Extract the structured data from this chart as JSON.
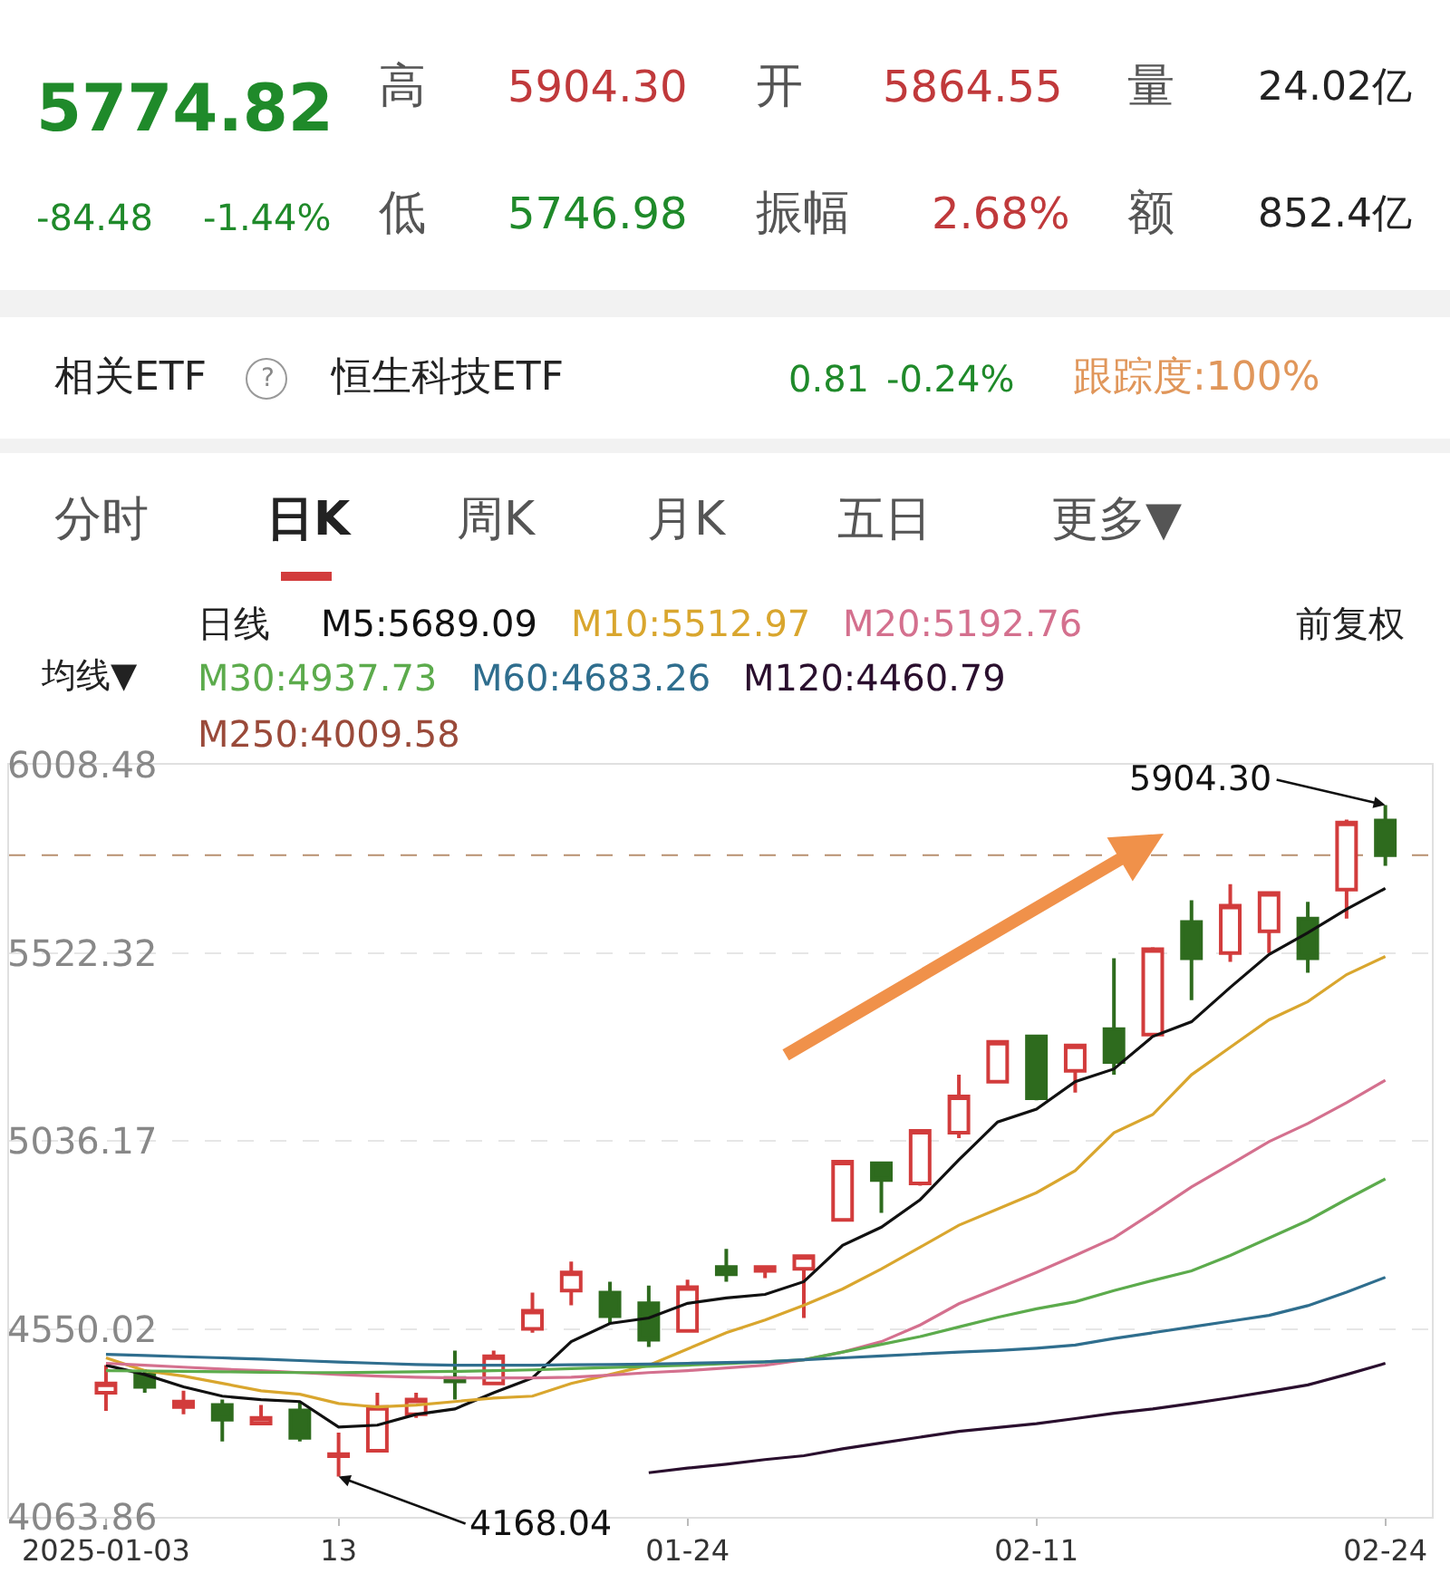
{
  "chart_data": {
    "type": "candlestick",
    "categories": [
      "2025-01-03",
      null,
      null,
      null,
      null,
      null,
      "13",
      null,
      null,
      null,
      null,
      null,
      null,
      null,
      null,
      "01-24",
      null,
      null,
      null,
      null,
      null,
      null,
      null,
      null,
      "02-11",
      null,
      null,
      null,
      null,
      null,
      null,
      null,
      null,
      "02-24"
    ],
    "ohlc": [
      [
        4385,
        4456,
        4338,
        4409
      ],
      [
        4432,
        4446,
        4385,
        4400
      ],
      [
        4348,
        4390,
        4329,
        4362
      ],
      [
        4353,
        4367,
        4259,
        4315
      ],
      [
        4305,
        4353,
        4301,
        4320
      ],
      [
        4339,
        4362,
        4259,
        4268
      ],
      [
        4221,
        4282,
        4168.04,
        4226
      ],
      [
        4235,
        4385,
        4230,
        4348
      ],
      [
        4329,
        4385,
        4320,
        4367
      ],
      [
        4423,
        4494,
        4367,
        4414
      ],
      [
        4409,
        4494,
        4409,
        4479
      ],
      [
        4550,
        4644,
        4540,
        4597
      ],
      [
        4649,
        4724,
        4611,
        4696
      ],
      [
        4644,
        4672,
        4564,
        4583
      ],
      [
        4616,
        4662,
        4503,
        4522
      ],
      [
        4545,
        4677,
        4540,
        4658
      ],
      [
        4710,
        4757,
        4672,
        4691
      ],
      [
        4700,
        4712,
        4681,
        4710
      ],
      [
        4705,
        4740,
        4578,
        4738
      ],
      [
        4832,
        4985,
        4828,
        4982
      ],
      [
        4978,
        4980,
        4850,
        4935
      ],
      [
        4926,
        5066,
        4920,
        5062
      ],
      [
        5057,
        5207,
        5043,
        5151
      ],
      [
        5189,
        5296,
        5185,
        5292
      ],
      [
        5306,
        5310,
        5141,
        5146
      ],
      [
        5217,
        5285,
        5161,
        5283
      ],
      [
        5325,
        5508,
        5207,
        5240
      ],
      [
        5311,
        5537,
        5306,
        5532
      ],
      [
        5602,
        5658,
        5400,
        5508
      ],
      [
        5522,
        5700,
        5499,
        5644
      ],
      [
        5578,
        5680,
        5522,
        5677
      ],
      [
        5611,
        5654,
        5471,
        5508
      ],
      [
        5686,
        5867,
        5611,
        5859.3
      ],
      [
        5864.55,
        5904.3,
        5746.98,
        5774.82
      ]
    ],
    "series": [
      {
        "name": "M5:5689.09",
        "type": "line",
        "color": "#111111",
        "values": [
          4456,
          4432,
          4400,
          4376,
          4367,
          4362,
          4296,
          4301,
          4329,
          4343,
          4385,
          4423,
          4517,
          4564,
          4578,
          4616,
          4630,
          4639,
          4672,
          4766,
          4813,
          4884,
          4987,
          5085,
          5118,
          5189,
          5222,
          5306,
          5344,
          5433,
          5518,
          5574,
          5635,
          5689.09
        ]
      },
      {
        "name": "M10:5512.97",
        "type": "line",
        "color": "#d9a62e",
        "values": [
          4475,
          4442,
          4428,
          4409,
          4390,
          4381,
          4357,
          4348,
          4353,
          4362,
          4371,
          4376,
          4409,
          4432,
          4456,
          4498,
          4540,
          4573,
          4611,
          4653,
          4705,
          4761,
          4818,
          4860,
          4902,
          4959,
          5057,
          5104,
          5207,
          5278,
          5349,
          5396,
          5466,
          5512.97
        ]
      },
      {
        "name": "M20:5192.76",
        "type": "line",
        "color": "#d4708e",
        "values": [
          4461,
          4456,
          4451,
          4446,
          4442,
          4437,
          4432,
          4428,
          4425,
          4423,
          4423,
          4423,
          4425,
          4430,
          4437,
          4442,
          4449,
          4456,
          4470,
          4490,
          4517,
          4560,
          4615,
          4655,
          4696,
          4740,
          4785,
          4850,
          4917,
          4975,
          5034,
          5081,
          5135,
          5192.76
        ]
      },
      {
        "name": "M30:4937.73",
        "type": "line",
        "color": "#5cab4c",
        "values": [
          4442,
          4441,
          4440,
          4439,
          4438,
          4437,
          4437,
          4438,
          4439,
          4440,
          4442,
          4444,
          4447,
          4450,
          4453,
          4456,
          4460,
          4465,
          4470,
          4490,
          4510,
          4530,
          4555,
          4580,
          4602,
          4620,
          4649,
          4675,
          4700,
          4740,
          4785,
          4830,
          4885,
          4937.73
        ]
      },
      {
        "name": "M60:4683.26",
        "type": "line",
        "color": "#2f6e8e",
        "values": [
          4484,
          4481,
          4478,
          4475,
          4472,
          4468,
          4464,
          4461,
          4458,
          4456,
          4456,
          4456,
          4457,
          4458,
          4459,
          4461,
          4463,
          4465,
          4470,
          4475,
          4480,
          4485,
          4490,
          4494,
          4500,
          4508,
          4525,
          4540,
          4555,
          4570,
          4585,
          4610,
          4645,
          4683.26
        ]
      },
      {
        "name": "M120:4460.79",
        "type": "line",
        "color": "#2a0f2e",
        "values": [
          null,
          null,
          null,
          null,
          null,
          null,
          null,
          null,
          null,
          null,
          null,
          null,
          null,
          null,
          4178,
          4190,
          4200,
          4212,
          4222,
          4240,
          4255,
          4270,
          4285,
          4295,
          4305,
          4318,
          4332,
          4343,
          4357,
          4372,
          4388,
          4405,
          4432,
          4460.79
        ]
      },
      {
        "name": "M250:4009.58",
        "type": "line",
        "color": "#9a4a3a",
        "values": [
          null,
          null,
          null,
          null,
          null,
          null,
          null,
          null,
          null,
          null,
          null,
          null,
          null,
          null,
          null,
          null,
          null,
          null,
          null,
          null,
          null,
          null,
          null,
          null,
          null,
          null,
          null,
          null,
          null,
          null,
          null,
          null,
          null,
          null
        ]
      }
    ],
    "ylim": [
      4063.86,
      6008.48
    ],
    "yticks": [
      4063.86,
      4550.02,
      5036.17,
      5522.32,
      6008.48
    ],
    "grid": "y",
    "legend": "top",
    "line_style": "solid",
    "marker": "none",
    "ref_lines": [
      {
        "axis": "y",
        "value": 5774.82,
        "color": "#b89070",
        "line_style": "dashed"
      }
    ],
    "annotations": [
      "5774.82",
      "高",
      "5904.30",
      "开",
      "5864.55",
      "量",
      "24.02亿",
      "-84.48",
      "-1.44%",
      "低",
      "5746.98",
      "振幅",
      "2.68%",
      "额",
      "852.4亿",
      "相关ETF",
      "?",
      "恒生科技ETF",
      "0.81",
      "-0.24%",
      "跟踪度:100%",
      "分时",
      "日K",
      "周K",
      "月K",
      "五日",
      "更多▼",
      "日线",
      "均线▼",
      "前复权",
      {
        "text": "5904.30",
        "x": "02-24",
        "y": 5904.3
      },
      {
        "text": "4168.04",
        "x": "13",
        "y": 4168.04
      }
    ]
  }
}
